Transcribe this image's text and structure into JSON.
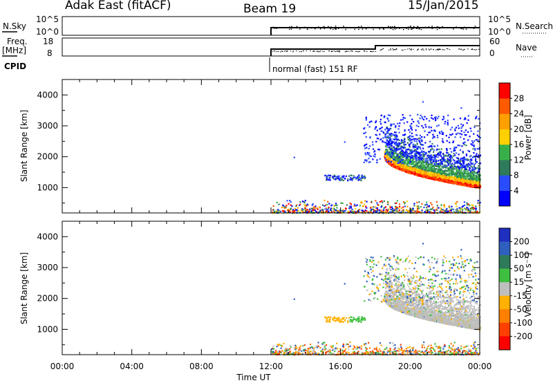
{
  "header": {
    "station": "Adak East (fitACF)",
    "beam": "Beam 19",
    "date": "15/Jan/2015"
  },
  "panels": {
    "nsky": {
      "label": "N.Sky",
      "left_ticks": [
        "10^5",
        "10^0"
      ],
      "right_ticks": [
        "10^5",
        "10^0"
      ],
      "right_label": "N.Search"
    },
    "freq": {
      "label_top": "Freq.",
      "label_unit": "[MHz]",
      "left_ticks": [
        "18",
        "8"
      ],
      "right_ticks": [
        "60",
        "0"
      ],
      "right_label": "Nave"
    },
    "cpid": {
      "label": "CPID",
      "mode": "normal (fast) 151 RF"
    }
  },
  "chart_data": [
    {
      "type": "heatmap",
      "name": "power",
      "ylabel": "Slant Range [km]",
      "xlim": [
        "00:00",
        "24:00"
      ],
      "ylim": [
        180,
        4500
      ],
      "yticks": [
        1000,
        2000,
        3000,
        4000
      ],
      "colorbar": {
        "label": "Power [dB]",
        "ticks": [
          4,
          8,
          12,
          16,
          20,
          24,
          28
        ],
        "colors": [
          "#0000ff",
          "#2a4cff",
          "#2f7a5a",
          "#38b04a",
          "#ffd000",
          "#ffa000",
          "#ff5a00",
          "#ff0000"
        ]
      },
      "features": [
        {
          "time_range": [
            "15:00",
            "17:30"
          ],
          "range_km": [
            1200,
            1450
          ],
          "value": "weak, 4-12 dB"
        },
        {
          "time_range": [
            "18:30",
            "24:00"
          ],
          "range_km": [
            900,
            2500
          ],
          "value": "strong arc, 16-30 dB near lower edge"
        },
        {
          "time_range": [
            "17:30",
            "24:00"
          ],
          "range_km": [
            1800,
            3300
          ],
          "value": "scattered, 4-12 dB"
        },
        {
          "time_range": [
            "12:00",
            "24:00"
          ],
          "range_km": [
            180,
            600
          ],
          "value": "ground clutter, mixed"
        }
      ]
    },
    {
      "type": "heatmap",
      "name": "velocity",
      "ylabel": "Slant Range [km]",
      "xlabel": "Time UT",
      "xlim": [
        "00:00",
        "24:00"
      ],
      "ylim": [
        180,
        4500
      ],
      "yticks": [
        1000,
        2000,
        3000,
        4000
      ],
      "xticks": [
        "00:00",
        "04:00",
        "08:00",
        "12:00",
        "16:00",
        "20:00",
        "00:00"
      ],
      "colorbar": {
        "label": "Velocity [m s⁻¹]",
        "ticks": [
          200,
          100,
          50,
          15,
          -15,
          -50,
          -100,
          -200
        ],
        "colors": [
          "#1f2fbf",
          "#2f5fbf",
          "#2f7a5a",
          "#3fbf3f",
          "#bfbfbf",
          "#ffb000",
          "#ff8000",
          "#ff4000",
          "#ff0000"
        ]
      },
      "features": [
        {
          "time_range": [
            "15:00",
            "16:30"
          ],
          "range_km": [
            1250,
            1350
          ],
          "value": "-15 to -50 m/s"
        },
        {
          "time_range": [
            "16:30",
            "17:30"
          ],
          "range_km": [
            1300,
            1500
          ],
          "value": "15 to 50 m/s"
        },
        {
          "time_range": [
            "18:30",
            "24:00"
          ],
          "range_km": [
            900,
            2500
          ],
          "value": "-15 to 15 m/s (grey)"
        },
        {
          "time_range": [
            "12:00",
            "24:00"
          ],
          "range_km": [
            180,
            600
          ],
          "value": "ground scatter, mixed"
        }
      ]
    }
  ]
}
